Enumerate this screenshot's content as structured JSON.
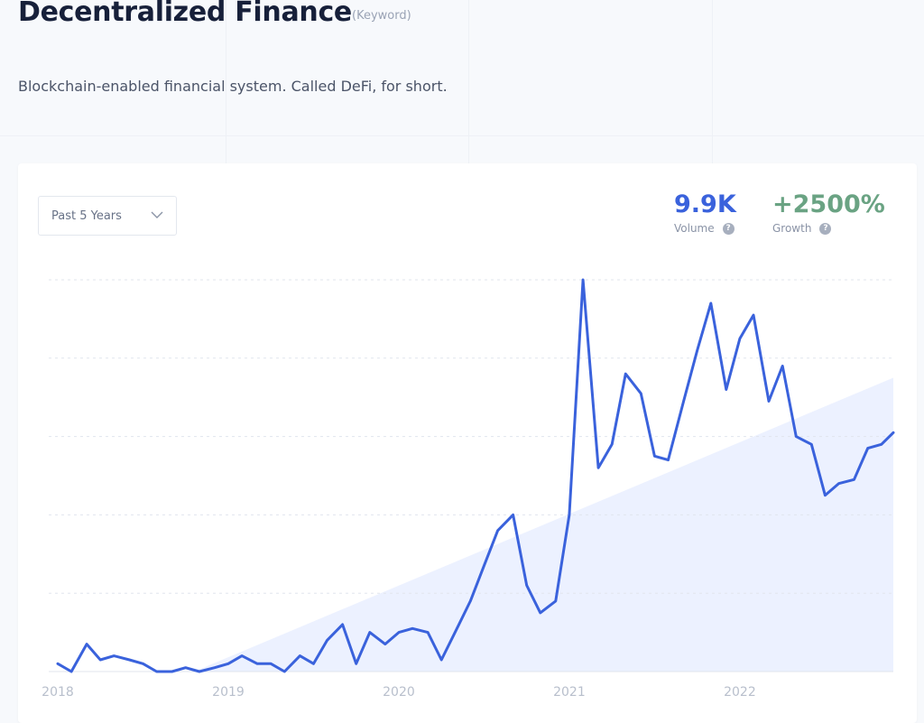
{
  "header": {
    "title": "Decentralized Finance",
    "tag": "(Keyword)",
    "description": "Blockchain-enabled financial system. Called DeFi, for short."
  },
  "controls": {
    "range_label": "Past 5 Years"
  },
  "stats": {
    "volume_value": "9.9K",
    "volume_label": "Volume",
    "growth_value": "+2500%",
    "growth_label": "Growth",
    "help_glyph": "?"
  },
  "colors": {
    "line": "#3a62dc",
    "volume": "#3a62dc",
    "growth": "#6aa383",
    "trend_fill": "#e9efff",
    "grid": "#e1e5ee"
  },
  "chart_data": {
    "type": "line",
    "title": "",
    "xlabel": "",
    "ylabel": "",
    "x_ticks": [
      "2018",
      "2019",
      "2020",
      "2021",
      "2022"
    ],
    "xlim": [
      2018,
      2022.9
    ],
    "ylim": [
      0,
      100
    ],
    "grid": true,
    "trend": {
      "start": [
        2018.8,
        0
      ],
      "end": [
        2022.9,
        75
      ]
    },
    "series": [
      {
        "x": [
          2018.0,
          2018.08,
          2018.17,
          2018.25,
          2018.33,
          2018.42,
          2018.5,
          2018.58,
          2018.67,
          2018.75,
          2018.83,
          2018.92,
          2019.0,
          2019.08,
          2019.17,
          2019.25,
          2019.33,
          2019.42,
          2019.5,
          2019.58,
          2019.67,
          2019.75,
          2019.83,
          2019.92,
          2020.0,
          2020.08,
          2020.17,
          2020.25,
          2020.33,
          2020.42,
          2020.5,
          2020.58,
          2020.67,
          2020.75,
          2020.83,
          2020.92,
          2021.0,
          2021.08,
          2021.17,
          2021.25,
          2021.33,
          2021.42,
          2021.5,
          2021.58,
          2021.67,
          2021.75,
          2021.83,
          2021.92,
          2022.0,
          2022.08,
          2022.17,
          2022.25,
          2022.33,
          2022.42,
          2022.5,
          2022.58,
          2022.67,
          2022.75,
          2022.83,
          2022.9
        ],
        "values": [
          2,
          0,
          7,
          3,
          4,
          3,
          2,
          0,
          0,
          1,
          0,
          1,
          2,
          4,
          2,
          2,
          0,
          4,
          2,
          8,
          12,
          2,
          10,
          7,
          10,
          11,
          10,
          3,
          10,
          18,
          27,
          36,
          40,
          22,
          15,
          18,
          40,
          100,
          52,
          58,
          76,
          71,
          55,
          54,
          69,
          82,
          94,
          72,
          85,
          91,
          69,
          78,
          60,
          58,
          45,
          48,
          49,
          57,
          58,
          61
        ]
      }
    ]
  }
}
